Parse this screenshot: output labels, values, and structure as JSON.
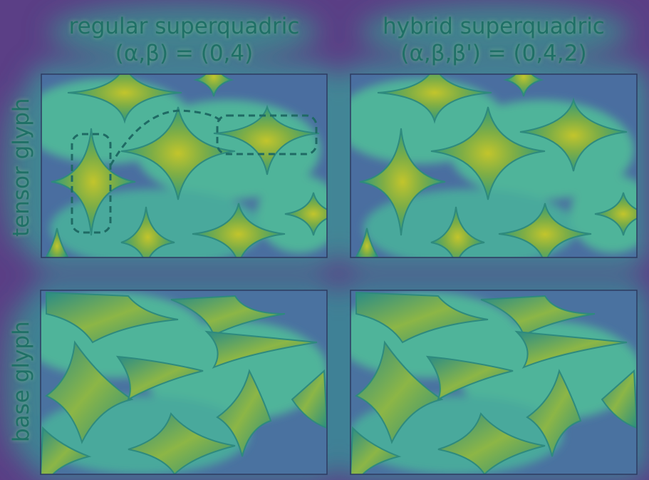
{
  "columns": [
    {
      "title": "regular superquadric",
      "params": "(α,β) = (0,4)"
    },
    {
      "title": "hybrid superquadric",
      "params": "(α,β,β') = (0,4,2)"
    }
  ],
  "rows": [
    {
      "label": "tensor glyph"
    },
    {
      "label": "base glyph"
    }
  ],
  "colors": {
    "background": "#5b3f86",
    "field_mid": "#3e8f9a",
    "field_light": "#6fd39a",
    "glyph_fill": "#6aa84f",
    "glyph_center": "#b5c42e",
    "glyph_dark": "#1f8a86",
    "text": "#1f7066",
    "frame": "#2d3a60",
    "callout": "#1f6a64"
  }
}
